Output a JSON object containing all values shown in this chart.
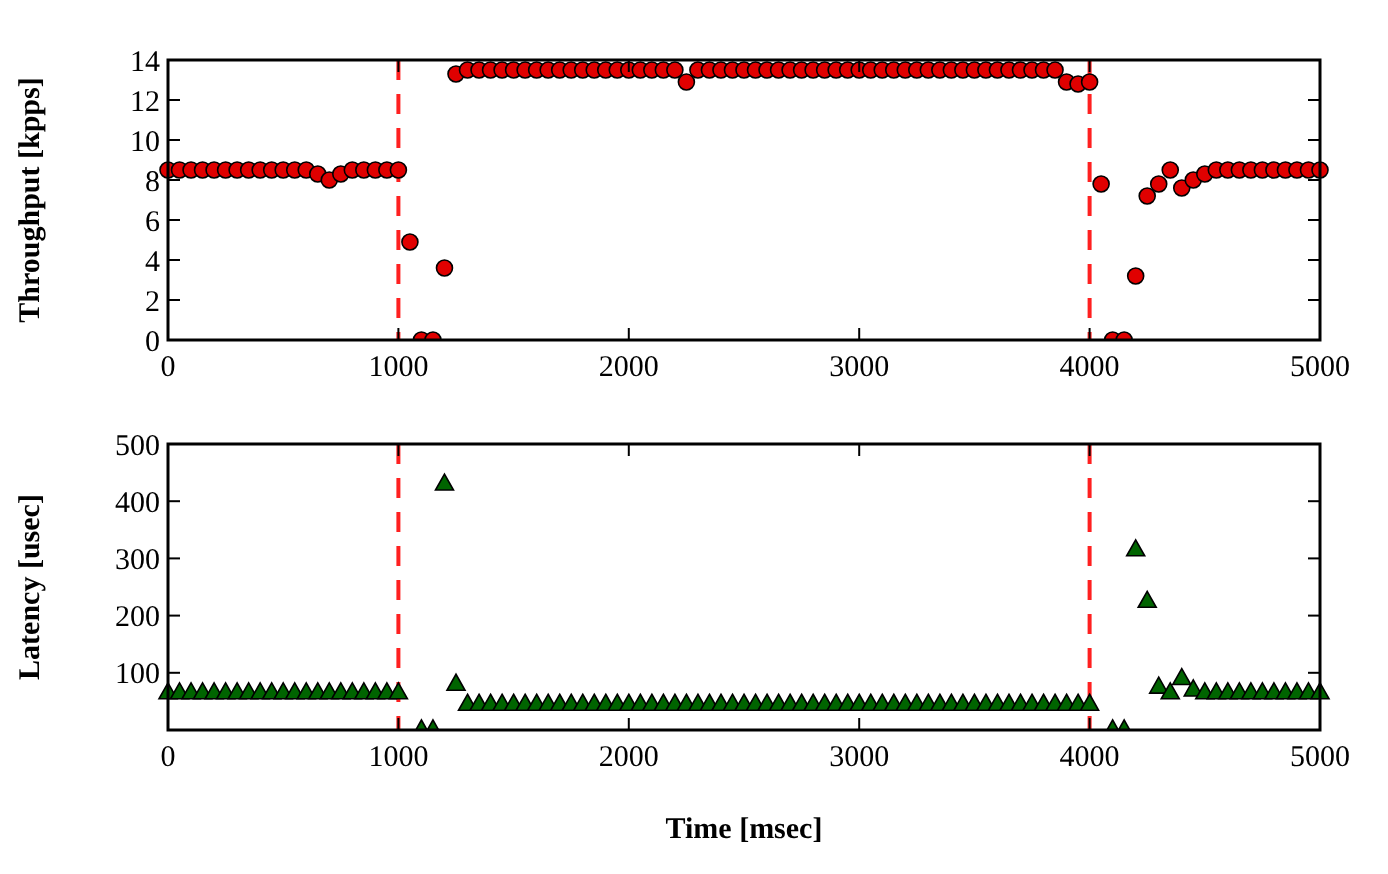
{
  "chart_data": [
    {
      "type": "scatter",
      "ylabel": "Throughput [kpps]",
      "marker": "circle",
      "xlim": [
        0,
        5000
      ],
      "xticks": [
        0,
        1000,
        2000,
        3000,
        4000,
        5000
      ],
      "ylim": [
        0,
        14
      ],
      "yticks": [
        0,
        2,
        4,
        6,
        8,
        10,
        12,
        14
      ],
      "ref_lines": [
        {
          "axis": "x",
          "value": 1000,
          "color": "#ff2020",
          "line_style": "dashed"
        },
        {
          "axis": "x",
          "value": 4000,
          "color": "#ff2020",
          "line_style": "dashed"
        }
      ],
      "series": [
        {
          "color": "#e00000",
          "x": [
            0,
            50,
            100,
            150,
            200,
            250,
            300,
            350,
            400,
            450,
            500,
            550,
            600,
            650,
            700,
            750,
            800,
            850,
            900,
            950,
            1000,
            1050,
            1100,
            1150,
            1200,
            1250,
            1300,
            1350,
            1400,
            1450,
            1500,
            1550,
            1600,
            1650,
            1700,
            1750,
            1800,
            1850,
            1900,
            1950,
            2000,
            2050,
            2100,
            2150,
            2200,
            2250,
            2300,
            2350,
            2400,
            2450,
            2500,
            2550,
            2600,
            2650,
            2700,
            2750,
            2800,
            2850,
            2900,
            2950,
            3000,
            3050,
            3100,
            3150,
            3200,
            3250,
            3300,
            3350,
            3400,
            3450,
            3500,
            3550,
            3600,
            3650,
            3700,
            3750,
            3800,
            3850,
            3900,
            3950,
            4000,
            4050,
            4100,
            4150,
            4200,
            4250,
            4300,
            4350,
            4400,
            4450,
            4500,
            4550,
            4600,
            4650,
            4700,
            4750,
            4800,
            4850,
            4900,
            4950,
            5000
          ],
          "values": [
            8.5,
            8.5,
            8.5,
            8.5,
            8.5,
            8.5,
            8.5,
            8.5,
            8.5,
            8.5,
            8.5,
            8.5,
            8.5,
            8.3,
            8.0,
            8.3,
            8.5,
            8.5,
            8.5,
            8.5,
            8.5,
            4.9,
            0,
            0,
            3.6,
            13.3,
            13.5,
            13.5,
            13.5,
            13.5,
            13.5,
            13.5,
            13.5,
            13.5,
            13.5,
            13.5,
            13.5,
            13.5,
            13.5,
            13.5,
            13.5,
            13.5,
            13.5,
            13.5,
            13.5,
            12.9,
            13.5,
            13.5,
            13.5,
            13.5,
            13.5,
            13.5,
            13.5,
            13.5,
            13.5,
            13.5,
            13.5,
            13.5,
            13.5,
            13.5,
            13.5,
            13.5,
            13.5,
            13.5,
            13.5,
            13.5,
            13.5,
            13.5,
            13.5,
            13.5,
            13.5,
            13.5,
            13.5,
            13.5,
            13.5,
            13.5,
            13.5,
            13.5,
            12.9,
            12.8,
            12.9,
            7.8,
            0,
            0,
            3.2,
            7.2,
            7.8,
            8.5,
            7.6,
            8.0,
            8.3,
            8.5,
            8.5,
            8.5,
            8.5,
            8.5,
            8.5,
            8.5,
            8.5,
            8.5,
            8.5
          ]
        }
      ]
    },
    {
      "type": "scatter",
      "xlabel": "Time [msec]",
      "ylabel": "Latency [usec]",
      "marker": "triangle",
      "xlim": [
        0,
        5000
      ],
      "xticks": [
        0,
        1000,
        2000,
        3000,
        4000,
        5000
      ],
      "ylim": [
        0,
        500
      ],
      "yticks": [
        100,
        200,
        300,
        400,
        500
      ],
      "ref_lines": [
        {
          "axis": "x",
          "value": 1000,
          "color": "#ff2020",
          "line_style": "dashed"
        },
        {
          "axis": "x",
          "value": 4000,
          "color": "#ff2020",
          "line_style": "dashed"
        }
      ],
      "series": [
        {
          "color": "#006400",
          "x": [
            0,
            50,
            100,
            150,
            200,
            250,
            300,
            350,
            400,
            450,
            500,
            550,
            600,
            650,
            700,
            750,
            800,
            850,
            900,
            950,
            1000,
            1050,
            1100,
            1150,
            1200,
            1250,
            1300,
            1350,
            1400,
            1450,
            1500,
            1550,
            1600,
            1650,
            1700,
            1750,
            1800,
            1850,
            1900,
            1950,
            2000,
            2050,
            2100,
            2150,
            2200,
            2250,
            2300,
            2350,
            2400,
            2450,
            2500,
            2550,
            2600,
            2650,
            2700,
            2750,
            2800,
            2850,
            2900,
            2950,
            3000,
            3050,
            3100,
            3150,
            3200,
            3250,
            3300,
            3350,
            3400,
            3450,
            3500,
            3550,
            3600,
            3650,
            3700,
            3750,
            3800,
            3850,
            3900,
            3950,
            4000,
            4050,
            4100,
            4150,
            4200,
            4250,
            4300,
            4350,
            4400,
            4450,
            4500,
            4550,
            4600,
            4650,
            4700,
            4750,
            4800,
            4850,
            4900,
            4950,
            5000
          ],
          "values": [
            65,
            65,
            65,
            65,
            65,
            65,
            65,
            65,
            65,
            65,
            65,
            65,
            65,
            65,
            65,
            65,
            65,
            65,
            65,
            65,
            65,
            null,
            0,
            0,
            430,
            80,
            45,
            45,
            45,
            45,
            45,
            45,
            45,
            45,
            45,
            45,
            45,
            45,
            45,
            45,
            45,
            45,
            45,
            45,
            45,
            45,
            45,
            45,
            45,
            45,
            45,
            45,
            45,
            45,
            45,
            45,
            45,
            45,
            45,
            45,
            45,
            45,
            45,
            45,
            45,
            45,
            45,
            45,
            45,
            45,
            45,
            45,
            45,
            45,
            45,
            45,
            45,
            45,
            45,
            45,
            45,
            null,
            0,
            0,
            315,
            225,
            75,
            65,
            90,
            70,
            65,
            65,
            65,
            65,
            65,
            65,
            65,
            65,
            65,
            65,
            65
          ]
        }
      ]
    }
  ]
}
